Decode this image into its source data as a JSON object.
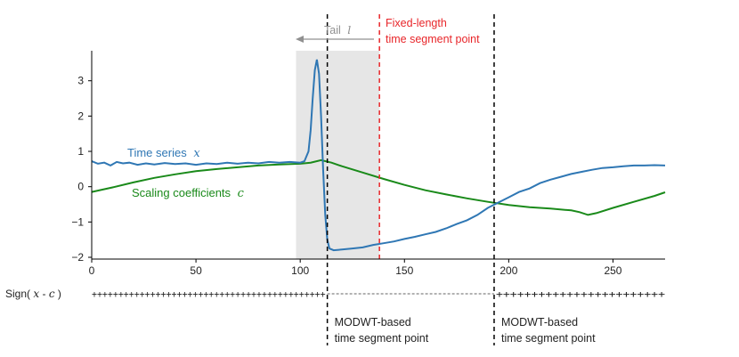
{
  "chart_data": {
    "type": "line",
    "xlim": [
      0,
      275
    ],
    "ylim": [
      -2.05,
      3.85
    ],
    "x_ticks": [
      0,
      50,
      100,
      150,
      200,
      250
    ],
    "y_ticks": [
      -2,
      -1,
      0,
      1,
      2,
      3
    ],
    "x_tick_labels": [
      "0",
      "50",
      "100",
      "150",
      "200",
      "250"
    ],
    "y_tick_labels": [
      "−2",
      "−1",
      "0",
      "1",
      "2",
      "3"
    ],
    "grid": false,
    "shaded_region": {
      "x_start": 98,
      "x_end": 138,
      "color": "#e6e6e6"
    },
    "vlines": [
      {
        "x": 113,
        "style": "dashed",
        "color": "#000000"
      },
      {
        "x": 138,
        "style": "dashed",
        "color": "#e8262a"
      },
      {
        "x": 193,
        "style": "dashed",
        "color": "#000000"
      }
    ],
    "series": [
      {
        "name": "Time series x",
        "color": "#2f77b4",
        "points": [
          [
            0,
            0.72
          ],
          [
            3,
            0.65
          ],
          [
            6,
            0.68
          ],
          [
            9,
            0.6
          ],
          [
            12,
            0.7
          ],
          [
            15,
            0.66
          ],
          [
            18,
            0.68
          ],
          [
            22,
            0.62
          ],
          [
            26,
            0.66
          ],
          [
            30,
            0.63
          ],
          [
            35,
            0.67
          ],
          [
            40,
            0.64
          ],
          [
            45,
            0.66
          ],
          [
            50,
            0.62
          ],
          [
            55,
            0.66
          ],
          [
            60,
            0.64
          ],
          [
            65,
            0.68
          ],
          [
            70,
            0.65
          ],
          [
            75,
            0.68
          ],
          [
            80,
            0.66
          ],
          [
            85,
            0.7
          ],
          [
            90,
            0.68
          ],
          [
            95,
            0.7
          ],
          [
            100,
            0.68
          ],
          [
            102,
            0.72
          ],
          [
            104,
            1.0
          ],
          [
            105,
            1.6
          ],
          [
            106,
            2.5
          ],
          [
            107,
            3.3
          ],
          [
            108,
            3.6
          ],
          [
            109,
            3.2
          ],
          [
            110,
            2.0
          ],
          [
            111,
            0.5
          ],
          [
            112,
            -0.8
          ],
          [
            113,
            -1.5
          ],
          [
            114,
            -1.75
          ],
          [
            116,
            -1.8
          ],
          [
            120,
            -1.78
          ],
          [
            125,
            -1.75
          ],
          [
            130,
            -1.72
          ],
          [
            135,
            -1.65
          ],
          [
            140,
            -1.6
          ],
          [
            145,
            -1.55
          ],
          [
            150,
            -1.48
          ],
          [
            155,
            -1.42
          ],
          [
            160,
            -1.35
          ],
          [
            165,
            -1.28
          ],
          [
            170,
            -1.18
          ],
          [
            175,
            -1.06
          ],
          [
            180,
            -0.95
          ],
          [
            185,
            -0.8
          ],
          [
            190,
            -0.6
          ],
          [
            195,
            -0.45
          ],
          [
            200,
            -0.3
          ],
          [
            205,
            -0.15
          ],
          [
            210,
            -0.05
          ],
          [
            215,
            0.1
          ],
          [
            220,
            0.2
          ],
          [
            225,
            0.28
          ],
          [
            230,
            0.36
          ],
          [
            235,
            0.42
          ],
          [
            240,
            0.48
          ],
          [
            245,
            0.53
          ],
          [
            250,
            0.55
          ],
          [
            255,
            0.58
          ],
          [
            260,
            0.6
          ],
          [
            265,
            0.6
          ],
          [
            270,
            0.61
          ],
          [
            275,
            0.6
          ]
        ]
      },
      {
        "name": "Scaling coefficients c",
        "color": "#1a8a1a",
        "points": [
          [
            0,
            -0.15
          ],
          [
            10,
            -0.02
          ],
          [
            20,
            0.12
          ],
          [
            30,
            0.25
          ],
          [
            40,
            0.35
          ],
          [
            50,
            0.44
          ],
          [
            60,
            0.5
          ],
          [
            70,
            0.55
          ],
          [
            80,
            0.6
          ],
          [
            90,
            0.63
          ],
          [
            100,
            0.65
          ],
          [
            105,
            0.68
          ],
          [
            110,
            0.75
          ],
          [
            115,
            0.68
          ],
          [
            120,
            0.58
          ],
          [
            130,
            0.4
          ],
          [
            140,
            0.22
          ],
          [
            150,
            0.05
          ],
          [
            160,
            -0.1
          ],
          [
            170,
            -0.22
          ],
          [
            180,
            -0.33
          ],
          [
            190,
            -0.43
          ],
          [
            200,
            -0.52
          ],
          [
            210,
            -0.58
          ],
          [
            220,
            -0.62
          ],
          [
            230,
            -0.67
          ],
          [
            234,
            -0.72
          ],
          [
            238,
            -0.8
          ],
          [
            242,
            -0.75
          ],
          [
            250,
            -0.6
          ],
          [
            260,
            -0.43
          ],
          [
            270,
            -0.26
          ],
          [
            275,
            -0.16
          ]
        ]
      }
    ],
    "annotations": {
      "series_x_label_prefix": "Time series",
      "series_x_symbol": "x",
      "series_c_label_prefix": "Scaling coefficients",
      "series_c_symbol": "c",
      "tail_prefix": "Tail",
      "tail_symbol": "l",
      "fixed_line1": "Fixed-length",
      "fixed_line2": "time segment point",
      "modwt1_line1": "MODWT-based",
      "modwt1_line2": "time segment point",
      "modwt2_line1": "MODWT-based",
      "modwt2_line2": "time segment point",
      "sign_label_prefix": "Sign(",
      "sign_label_x": "x",
      "sign_label_mid": " - ",
      "sign_label_c": "c",
      "sign_label_suffix": ")",
      "sign_plus_left": "++++++++++++++++++++++++++++++++++++++++++++",
      "sign_plus_right": "++++++++++++++++++++++++"
    },
    "colors": {
      "axis": "#000000",
      "fixed_line": "#e8262a",
      "tail_arrow": "#909090"
    }
  }
}
